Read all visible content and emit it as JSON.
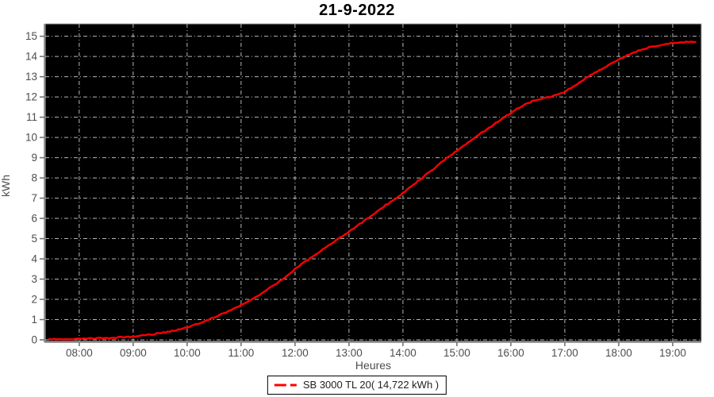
{
  "title": "21-9-2022",
  "chart_data": {
    "type": "line",
    "title": "21-9-2022",
    "xlabel": "Heures",
    "ylabel": "kWh",
    "x_ticks": [
      "08:00",
      "09:00",
      "10:00",
      "11:00",
      "12:00",
      "13:00",
      "14:00",
      "15:00",
      "16:00",
      "17:00",
      "18:00",
      "19:00"
    ],
    "x_tick_hours": [
      8,
      9,
      10,
      11,
      12,
      13,
      14,
      15,
      16,
      17,
      18,
      19
    ],
    "xlim": [
      7.37,
      19.53
    ],
    "y_ticks": [
      0,
      1,
      2,
      3,
      4,
      5,
      6,
      7,
      8,
      9,
      10,
      11,
      12,
      13,
      14,
      15
    ],
    "ylim": [
      0,
      15.6
    ],
    "grid": "dash-dot gray grid on black plot background",
    "legend": {
      "position": "bottom-center",
      "entries": [
        {
          "label": "SB 3000 TL 20( 14,722 kWh )",
          "color": "#ff0000"
        }
      ]
    },
    "series": [
      {
        "name": "SB 3000 TL 20",
        "total_shown": "14,722 kWh",
        "points": [
          [
            7.45,
            0.02
          ],
          [
            7.7,
            0.03
          ],
          [
            8.0,
            0.05
          ],
          [
            8.3,
            0.07
          ],
          [
            8.6,
            0.1
          ],
          [
            8.9,
            0.14
          ],
          [
            9.0,
            0.16
          ],
          [
            9.2,
            0.22
          ],
          [
            9.4,
            0.29
          ],
          [
            9.6,
            0.38
          ],
          [
            9.8,
            0.49
          ],
          [
            10.0,
            0.62
          ],
          [
            10.2,
            0.8
          ],
          [
            10.4,
            1.0
          ],
          [
            10.6,
            1.22
          ],
          [
            10.8,
            1.46
          ],
          [
            11.0,
            1.72
          ],
          [
            11.2,
            2.02
          ],
          [
            11.4,
            2.34
          ],
          [
            11.6,
            2.68
          ],
          [
            11.8,
            3.06
          ],
          [
            12.0,
            3.5
          ],
          [
            12.2,
            3.88
          ],
          [
            12.4,
            4.25
          ],
          [
            12.6,
            4.62
          ],
          [
            12.8,
            4.98
          ],
          [
            13.0,
            5.35
          ],
          [
            13.2,
            5.72
          ],
          [
            13.4,
            6.1
          ],
          [
            13.6,
            6.5
          ],
          [
            13.8,
            6.88
          ],
          [
            14.0,
            7.25
          ],
          [
            14.2,
            7.68
          ],
          [
            14.4,
            8.1
          ],
          [
            14.6,
            8.52
          ],
          [
            14.8,
            8.95
          ],
          [
            15.0,
            9.35
          ],
          [
            15.2,
            9.75
          ],
          [
            15.4,
            10.12
          ],
          [
            15.6,
            10.48
          ],
          [
            15.8,
            10.85
          ],
          [
            16.0,
            11.2
          ],
          [
            16.2,
            11.55
          ],
          [
            16.4,
            11.8
          ],
          [
            16.6,
            11.93
          ],
          [
            16.8,
            12.05
          ],
          [
            17.0,
            12.25
          ],
          [
            17.2,
            12.6
          ],
          [
            17.4,
            12.95
          ],
          [
            17.6,
            13.25
          ],
          [
            17.8,
            13.55
          ],
          [
            18.0,
            13.85
          ],
          [
            18.2,
            14.1
          ],
          [
            18.4,
            14.32
          ],
          [
            18.6,
            14.48
          ],
          [
            18.8,
            14.58
          ],
          [
            19.0,
            14.66
          ],
          [
            19.15,
            14.7
          ],
          [
            19.3,
            14.72
          ],
          [
            19.42,
            14.72
          ]
        ]
      }
    ],
    "colors": {
      "line": "#ff0000",
      "plot_background": "#000000",
      "grid": "#b8b8b8",
      "axis_text": "#4d4d4d",
      "axis_line": "#9a9a9a",
      "outer_background": "#ffffff",
      "title": "#000000",
      "legend_border": "#000000"
    }
  }
}
